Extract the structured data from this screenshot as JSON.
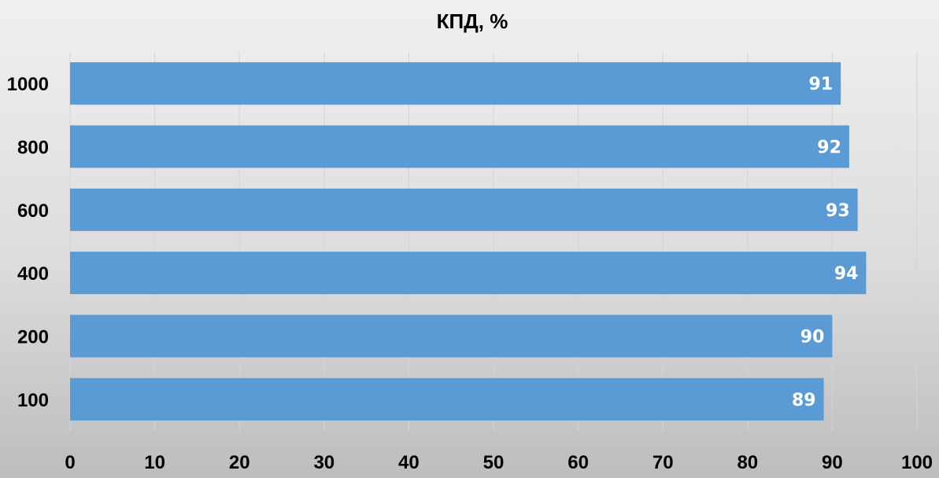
{
  "chart_data": {
    "type": "bar",
    "orientation": "horizontal",
    "title": "КПД, %",
    "xlabel": "",
    "ylabel": "",
    "categories": [
      "1000",
      "800",
      "600",
      "400",
      "200",
      "100"
    ],
    "values": [
      91,
      92,
      93,
      94,
      90,
      89
    ],
    "xlim": [
      0,
      100
    ],
    "x_ticks": [
      "0",
      "10",
      "20",
      "30",
      "40",
      "50",
      "60",
      "70",
      "80",
      "90",
      "100"
    ],
    "grid": true,
    "legend": "none",
    "bar_color": "#5b9bd5",
    "data_label_color": "#ffffff"
  }
}
